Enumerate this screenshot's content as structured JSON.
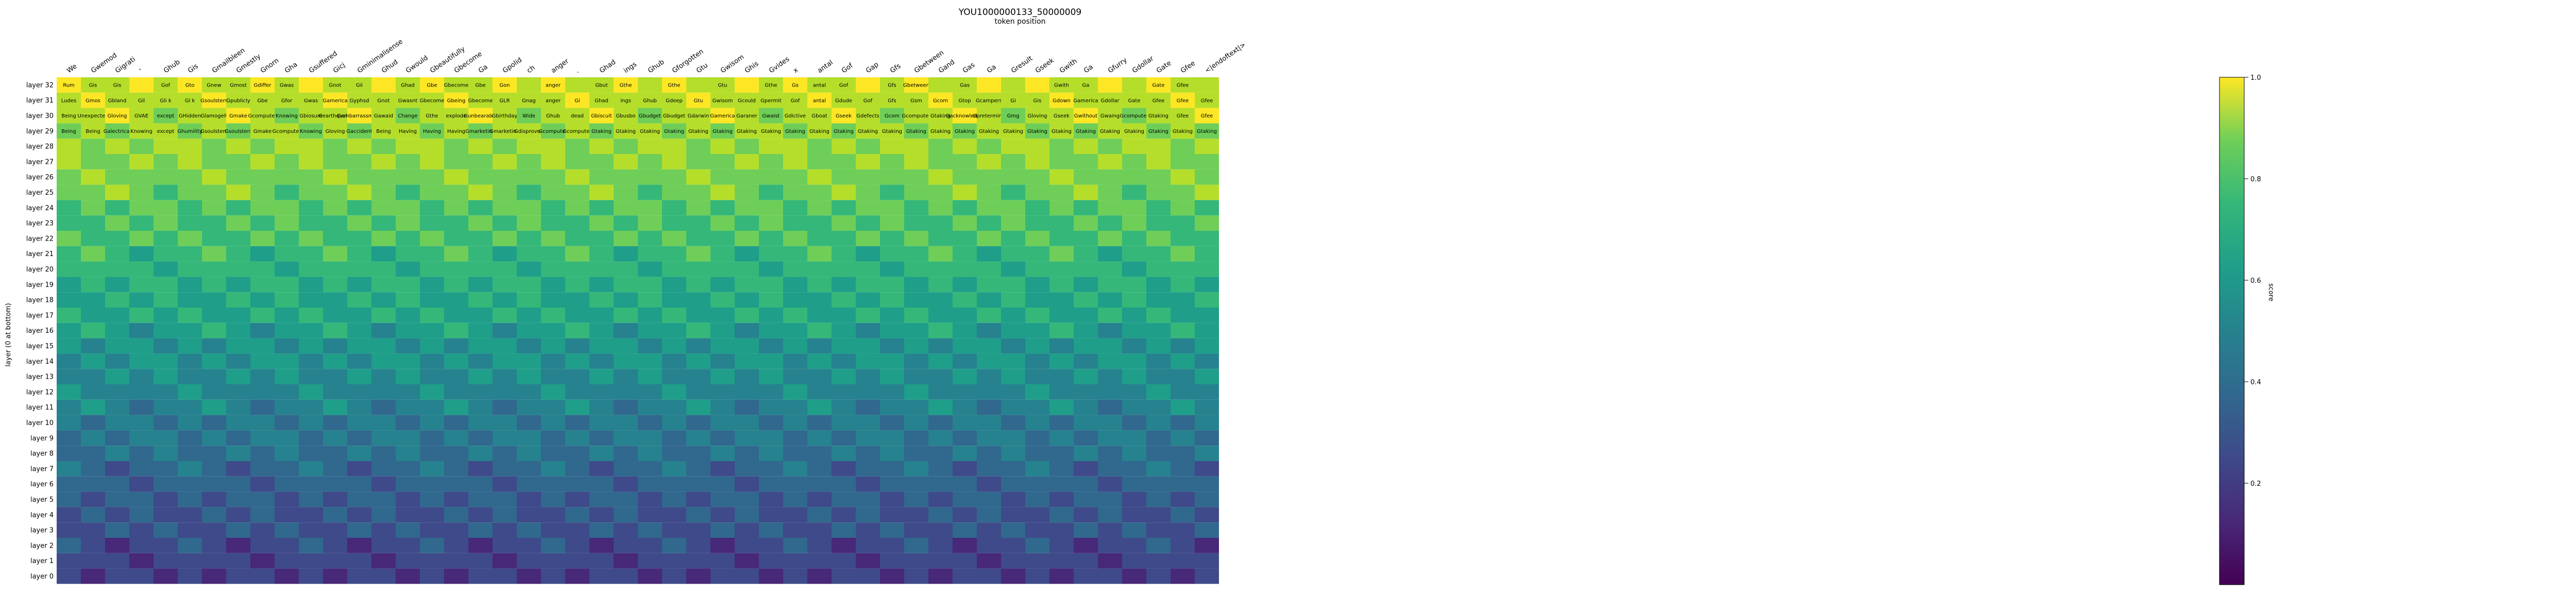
{
  "chart_data": {
    "type": "heatmap",
    "title": "YOU1000000133_50000009",
    "subtitle": "token position",
    "ylabel": "layer (0 at bottom)",
    "colorbar_label": "score",
    "colorbar_ticks": [
      "0.2",
      "0.4",
      "0.6",
      "0.8",
      "1.0"
    ],
    "colorscale": "viridis",
    "value_range": [
      0.0,
      1.0
    ],
    "token_labels": [
      "We",
      "Gwemod",
      "Gigrati",
      "'",
      "Ghub",
      "Gis",
      "Gmailbleen",
      "Gmestly",
      "Gnorn",
      "Gha",
      "Gsuffered",
      "Gicj",
      "Gminimalisense",
      "Ghud",
      "Gwould",
      "Gbeautifully",
      "Gbecome",
      "Ga",
      "Gpolid",
      "ch",
      "anger",
      ".",
      "Ghad",
      "ings",
      "Ghub",
      "Gforgotten",
      "Gtu",
      "Gwisom",
      "Ghis",
      "Gvides",
      "x",
      "antal",
      "Gof",
      "Gap",
      "Gfs",
      "Gbetween",
      "Gand",
      "Gas",
      "Ga",
      "Gresult",
      "Gseek",
      "Gwith",
      "Ga",
      "Gfurry",
      "Gdollar",
      "Gate",
      "Gfee",
      "<|endoftext|>"
    ],
    "layers": [
      "layer 32",
      "layer 31",
      "layer 30",
      "layer 29",
      "layer 28",
      "layer 27",
      "layer 26",
      "layer 25",
      "layer 24",
      "layer 23",
      "layer 22",
      "layer 21",
      "layer 20",
      "layer 19",
      "layer 18",
      "layer 17",
      "layer 16",
      "layer 15",
      "layer 14",
      "layer 13",
      "layer 12",
      "layer 11",
      "layer 10",
      "layer 9",
      "layer 8",
      "layer 7",
      "layer 6",
      "layer 5",
      "layer 4",
      "layer 3",
      "layer 2",
      "layer 1",
      "layer 0"
    ],
    "cell_text": [
      [
        "Rum",
        "Gis",
        "Gis",
        "",
        "Gof",
        "Gto",
        "Gnew",
        "Gmost",
        "Gdiffer",
        "Gwas",
        "",
        "Gnot",
        "Gii",
        "",
        "Ghad",
        "Gbe",
        "Gbecome",
        "Gbe",
        "Gon",
        "",
        "anger",
        "",
        "Gbut",
        "Gthe",
        "",
        "Gthe",
        "",
        "Gtu",
        "",
        "Gthe",
        "Gs",
        "antal",
        "Gof",
        "",
        "Gfs",
        "Gbetween",
        "",
        "Gas",
        "",
        "",
        "",
        "Gwith",
        "Ga",
        "",
        "",
        "Gate",
        "Gfee",
        ""
      ],
      [
        "Ludes",
        "Gmos",
        "Gbland",
        "Gil",
        "Gli k",
        "Gl k",
        "Gsoulsters",
        "Gpublicly",
        "Gbe",
        "Gfor",
        "Gwas",
        "Gamerica",
        "Gyphsd",
        "Gnot",
        "Gwasnt",
        "Gbecome",
        "Gbeing",
        "Gbecome",
        "GLR",
        "Gnag",
        "anger",
        "Gi",
        "Ghad",
        "ings",
        "Ghub",
        "Gdeep",
        "Gtu",
        "Gwisom",
        "Gcould",
        "Gpermit",
        "Gof",
        "antal",
        "Gdude",
        "Gof",
        "Gfs",
        "Gsm",
        "Gcom",
        "Gtop",
        "Gcampers",
        "Gi",
        "Gis",
        "Gdown",
        "Gamerica",
        "Gdollar",
        "Gate",
        "Gfee",
        "Gfee",
        "Gfee"
      ],
      [
        "Being",
        "Unexpected",
        "Gloving",
        "GVAE",
        "except",
        "GHidden",
        "Glamogelt",
        "Gmake",
        "Gcomputer",
        "Knowing",
        "Gbiosure",
        "Gearthquake",
        "Gembarrassment",
        "Gawaid",
        "Change",
        "Gthe",
        "explode",
        "Gunbearable",
        "Gbirthday",
        "Wide",
        "Ghub",
        "dead",
        "Gbiscuit",
        "Gbusbo",
        "Gbudget",
        "Gbudget",
        "Gdarwin",
        "Gamerica",
        "Garaner",
        "Gwaist",
        "Gdictive",
        "Gboat",
        "Gseek",
        "Gdefects",
        "Gcom",
        "Gcomputer",
        "Gtaking",
        "Gacknowledge",
        "Gpreterming",
        "Gmg",
        "Gloving",
        "Gseek",
        "Gwithout",
        "Gwaing",
        "Gcomputer",
        "Gtaking",
        "Gfee",
        "Gfee"
      ],
      [
        "Being",
        "Being",
        "Galectrical",
        "Knowing",
        "except",
        "Ghumility",
        "Gsoulsters",
        "Gsoulsters",
        "Gmake",
        "Gcomputer",
        "Knowing",
        "Gloving",
        "Gaccident",
        "Being",
        "Having",
        "Having",
        "Having",
        "Gmarketing",
        "Gmarketing",
        "Gdisproved",
        "Gcomputer",
        "Gcomputer",
        "Gtaking",
        "Gtaking",
        "Gtaking",
        "Gtaking",
        "Gtaking",
        "Gtaking",
        "Gtaking",
        "Gtaking",
        "Gtaking",
        "Gtaking",
        "Gtaking",
        "Gtaking",
        "Gtaking",
        "Gtaking",
        "Gtaking",
        "Gtaking",
        "Gtaking",
        "Gtaking",
        "Gtaking",
        "Gtaking",
        "Gtaking",
        "Gtaking",
        "Gtaking",
        "Gtaking",
        "Gtaking",
        "Gtaking"
      ]
    ]
  }
}
